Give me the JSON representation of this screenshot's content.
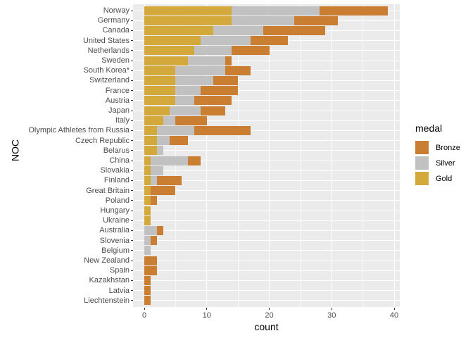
{
  "chart_data": {
    "type": "bar",
    "orientation": "horizontal",
    "stacked": true,
    "title": "",
    "xlabel": "count",
    "ylabel": "NOC",
    "x_ticks": [
      0,
      10,
      20,
      30,
      40
    ],
    "x_minor_ticks": [
      5,
      15,
      25,
      35
    ],
    "xlim": [
      -1.8,
      40.9
    ],
    "grid": true,
    "legend_position": "right",
    "legend": {
      "title": "medal",
      "entries": [
        {
          "label": "Bronze",
          "color": "#CA7E32"
        },
        {
          "label": "Silver",
          "color": "#C1C1C1"
        },
        {
          "label": "Gold",
          "color": "#D3A93C"
        }
      ]
    },
    "colors": {
      "Gold": "#D3A93C",
      "Silver": "#C1C1C1",
      "Bronze": "#CA7E32",
      "panel_background": "#EBEBEB",
      "gridline": "#FFFFFF",
      "axis_text": "#4D4D4D",
      "axis_title": "#000000",
      "tick_mark": "#333333"
    },
    "categories": [
      "Norway",
      "Germany",
      "Canada",
      "United States",
      "Netherlands",
      "Sweden",
      "South Korea*",
      "Switzerland",
      "France",
      "Austria",
      "Japan",
      "Italy",
      "Olympic Athletes from Russia",
      "Czech Republic",
      "Belarus",
      "China",
      "Slovakia",
      "Finland",
      "Great Britain",
      "Poland",
      "Hungary",
      "Ukraine",
      "Australia",
      "Slovenia",
      "Belgium",
      "New Zealand",
      "Spain",
      "Kazakhstan",
      "Latvia",
      "Liechtenstein"
    ],
    "stack_order": [
      "Gold",
      "Silver",
      "Bronze"
    ],
    "series": [
      {
        "name": "Gold",
        "values": [
          14,
          14,
          11,
          9,
          8,
          7,
          5,
          5,
          5,
          5,
          4,
          3,
          2,
          2,
          2,
          1,
          1,
          1,
          1,
          1,
          1,
          1,
          0,
          0,
          0,
          0,
          0,
          0,
          0,
          0
        ]
      },
      {
        "name": "Silver",
        "values": [
          14,
          10,
          8,
          8,
          6,
          6,
          8,
          6,
          4,
          3,
          5,
          2,
          6,
          2,
          1,
          6,
          2,
          1,
          0,
          0,
          0,
          0,
          2,
          1,
          1,
          0,
          0,
          0,
          0,
          0
        ]
      },
      {
        "name": "Bronze",
        "values": [
          11,
          7,
          10,
          6,
          6,
          1,
          4,
          4,
          6,
          6,
          4,
          5,
          9,
          3,
          0,
          2,
          0,
          4,
          4,
          1,
          0,
          0,
          1,
          1,
          0,
          2,
          2,
          1,
          1,
          1
        ]
      }
    ],
    "totals": [
      39,
      31,
      29,
      23,
      20,
      14,
      17,
      15,
      15,
      14,
      13,
      10,
      17,
      7,
      3,
      9,
      3,
      6,
      5,
      2,
      1,
      1,
      3,
      2,
      1,
      2,
      2,
      1,
      1,
      1
    ]
  }
}
